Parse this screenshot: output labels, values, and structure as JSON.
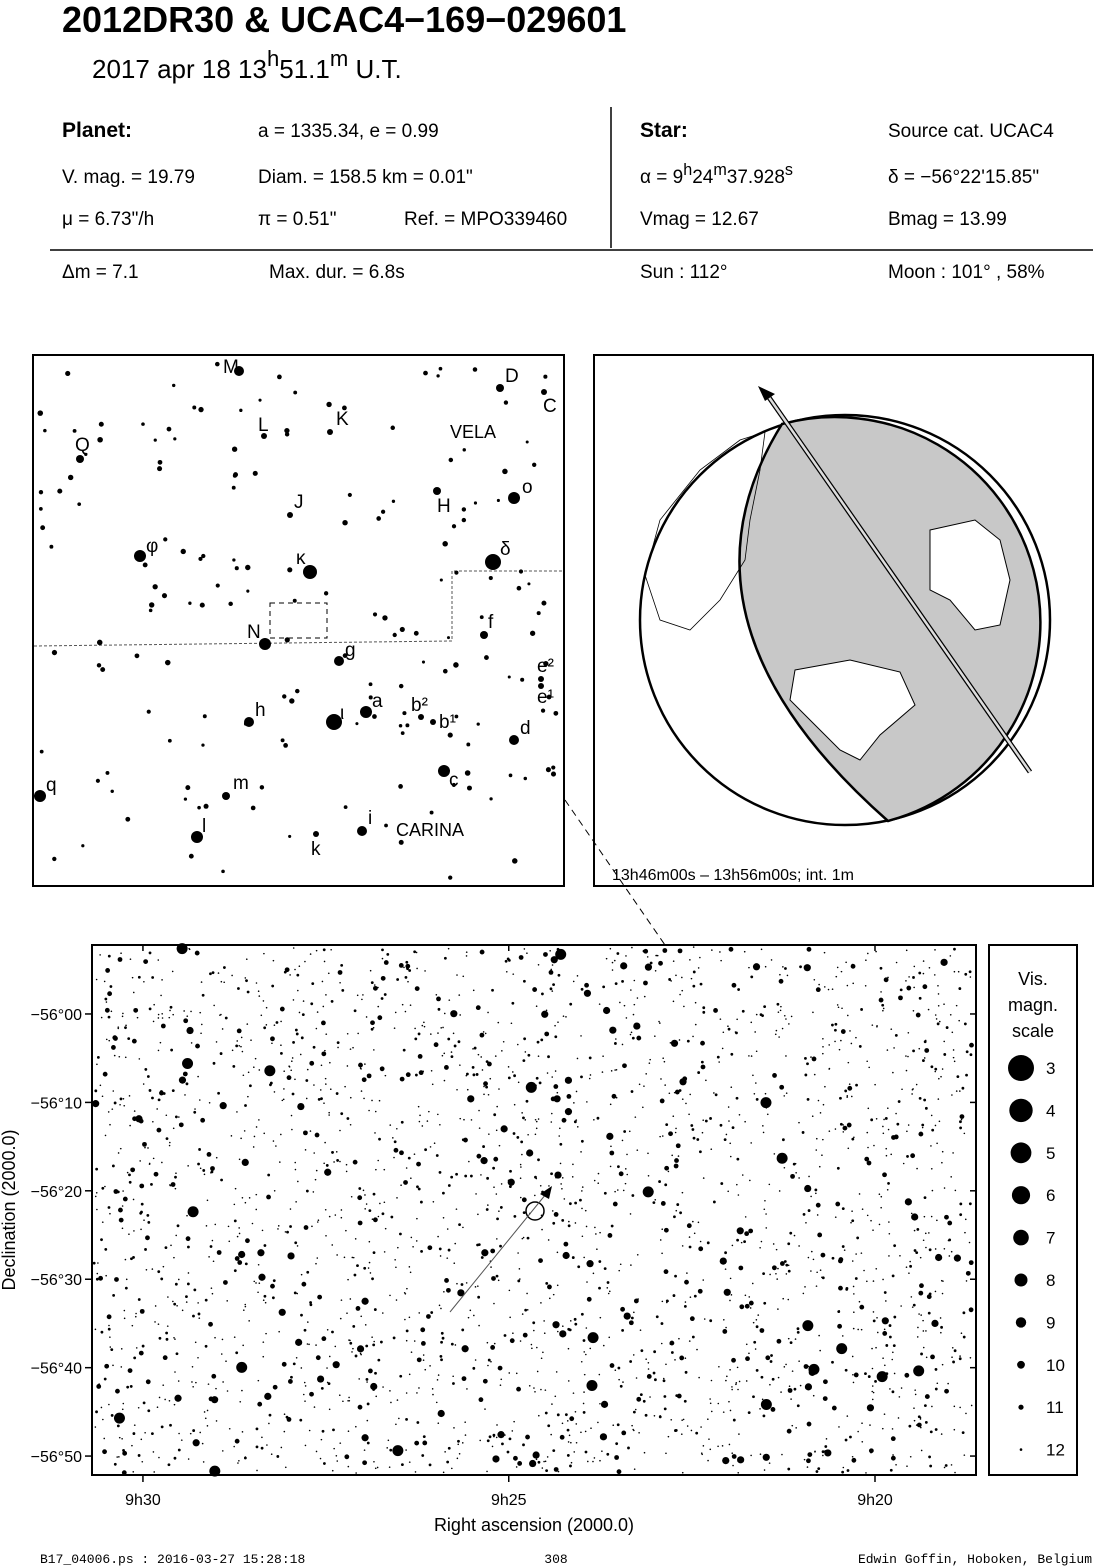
{
  "header": {
    "title": "2012DR30  &  UCAC4−169−029601",
    "date": [
      {
        "text": "2017 apr 18  13"
      },
      {
        "sup": "h"
      },
      {
        "text": "51.1"
      },
      {
        "sup": "m"
      },
      {
        "text": " U.T."
      }
    ]
  },
  "info": {
    "planet": {
      "label": "Planet:",
      "orbit": "a = 1335.34, e = 0.99",
      "vmag": "V. mag. = 19.79",
      "diam": "Diam. = 158.5 km = 0.01\"",
      "mu": "μ =  6.73\"/h",
      "pi": "π =  0.51\"",
      "ref": "Ref. = MPO339460"
    },
    "star": {
      "label": "Star:",
      "source": "Source cat.  UCAC4",
      "alpha": [
        {
          "text": "α =  9"
        },
        {
          "sup": "h"
        },
        {
          "text": "24"
        },
        {
          "sup": "m"
        },
        {
          "text": "37.928"
        },
        {
          "sup": "s"
        }
      ],
      "delta": "δ = −56°22'15.85\"",
      "vmag": "Vmag = 12.67",
      "bmag": "Bmag = 13.99"
    },
    "summary": {
      "dm": "Δm = 7.1",
      "maxdur": "Max. dur. = 6.8s",
      "sun": "Sun : 112°",
      "moon": "Moon : 101° , 58%"
    }
  },
  "overview_map": {
    "labels": [
      "M",
      "L",
      "K",
      "D",
      "C",
      "VELA",
      "Q",
      "J",
      "H",
      "o",
      "φ",
      "κ",
      "δ",
      "N",
      "f",
      "g",
      "e²",
      "a",
      "h",
      "ι",
      "b²",
      "b¹",
      "e¹",
      "d",
      "c",
      "m",
      "q",
      "l",
      "i",
      "CARINA",
      "k"
    ]
  },
  "globe": {
    "caption": "13h46m00s – 13h56m00s; int.  1m"
  },
  "chart_data": {
    "type": "starfield",
    "xlabel": "Right ascension (2000.0)",
    "ylabel": "Declination (2000.0)",
    "xlim": [
      9.5116,
      9.3103
    ],
    "ylim": [
      -56.869,
      -55.87
    ],
    "xticks": [
      {
        "value": 9.5,
        "label": "9h30"
      },
      {
        "value": 9.4167,
        "label": "9h25"
      },
      {
        "value": 9.3333,
        "label": "9h20"
      }
    ],
    "yticks": [
      {
        "value": -56.0,
        "label": "−56°00"
      },
      {
        "value": -56.1667,
        "label": "−56°10"
      },
      {
        "value": -56.3333,
        "label": "−56°20"
      },
      {
        "value": -56.5,
        "label": "−56°30"
      },
      {
        "value": -56.6667,
        "label": "−56°40"
      },
      {
        "value": -56.8333,
        "label": "−56°50"
      }
    ],
    "legend_title": [
      "Vis.",
      "magn.",
      "scale"
    ],
    "magnitudes": [
      3,
      4,
      5,
      6,
      7,
      8,
      9,
      10,
      11,
      12
    ]
  },
  "footer": {
    "file": "B17_04006.ps : 2016-03-27 15:28:18",
    "page": "308",
    "author": "Edwin Goffin, Hoboken, Belgium"
  }
}
